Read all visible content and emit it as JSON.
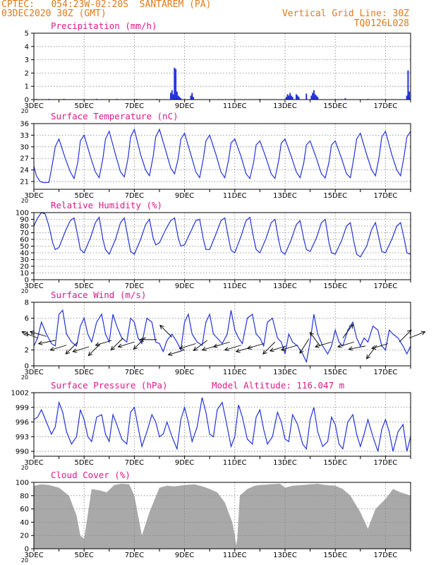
{
  "header": {
    "line1": "CPTEC:   054:23W-02:20S  SANTAREM (PA)",
    "line2": "03DEC2020 30Z (GMT)",
    "grid_note": "Vertical Grid Line: 30Z",
    "run_id": "TQ0126L028"
  },
  "colors": {
    "header": "#e07a1a",
    "title": "#e0188a",
    "series": "#2233dd",
    "bar": "#2233dd",
    "cloud": "#a9a9a9",
    "grid": "#808080"
  },
  "x_axis": {
    "day_start": 3,
    "day_end": 18,
    "tick_labels": [
      "3DEC",
      "5DEC",
      "7DEC",
      "9DEC",
      "11DEC",
      "13DEC",
      "15DEC",
      "17DEC"
    ],
    "tick_days": [
      3,
      5,
      7,
      9,
      11,
      13,
      15,
      17
    ],
    "clipped_label": "20"
  },
  "chart_data": [
    {
      "name": "precipitation",
      "type": "bar",
      "title": "Precipitation (mm/h)",
      "ylim": [
        0,
        5
      ],
      "yticks": [
        0,
        1,
        2,
        3,
        4,
        5
      ],
      "x_days": [
        3.1,
        3.6,
        4.2,
        5.5,
        6.3,
        7.1,
        7.9,
        8.45,
        8.5,
        8.55,
        8.6,
        8.65,
        8.7,
        8.75,
        8.8,
        8.85,
        9.25,
        9.3,
        9.35,
        12.0,
        13.05,
        13.1,
        13.15,
        13.2,
        13.25,
        13.3,
        13.45,
        13.5,
        13.55,
        13.85,
        14.05,
        14.1,
        14.15,
        14.2,
        14.25,
        14.3,
        15.4,
        16.3,
        17.85,
        17.9,
        17.95
      ],
      "values": [
        0.05,
        0.05,
        0.05,
        0.05,
        0.05,
        0.05,
        0.05,
        0.5,
        0.7,
        0.4,
        2.4,
        2.3,
        0.6,
        0.3,
        0.2,
        0.1,
        0.3,
        0.5,
        0.2,
        0.05,
        0.2,
        0.4,
        0.3,
        0.5,
        0.3,
        0.2,
        0.4,
        0.3,
        0.2,
        0.45,
        0.3,
        0.5,
        0.7,
        0.4,
        0.3,
        0.2,
        0.1,
        0.05,
        0.3,
        2.2,
        0.6
      ]
    },
    {
      "name": "surface_temperature",
      "type": "line",
      "title": "Surface Temperature (nC)",
      "ylim": [
        19,
        36
      ],
      "yticks": [
        21,
        24,
        27,
        30,
        33,
        36
      ],
      "x_days": [
        3.0,
        3.1,
        3.25,
        3.4,
        3.6,
        3.75,
        3.85,
        4.0,
        4.25,
        4.45,
        4.6,
        4.75,
        4.85,
        5.0,
        5.25,
        5.45,
        5.6,
        5.75,
        5.85,
        6.0,
        6.25,
        6.45,
        6.6,
        6.75,
        6.85,
        7.0,
        7.25,
        7.45,
        7.6,
        7.75,
        7.85,
        8.0,
        8.25,
        8.45,
        8.6,
        8.75,
        8.85,
        9.0,
        9.25,
        9.45,
        9.6,
        9.75,
        9.85,
        10.0,
        10.25,
        10.45,
        10.6,
        10.75,
        10.85,
        11.0,
        11.25,
        11.45,
        11.6,
        11.75,
        11.85,
        12.0,
        12.25,
        12.45,
        12.6,
        12.75,
        12.85,
        13.0,
        13.25,
        13.45,
        13.6,
        13.75,
        13.85,
        14.0,
        14.25,
        14.45,
        14.6,
        14.75,
        14.85,
        15.0,
        15.25,
        15.45,
        15.6,
        15.75,
        15.85,
        16.0,
        16.25,
        16.45,
        16.6,
        16.75,
        16.85,
        17.0,
        17.25,
        17.45,
        17.6,
        17.75,
        17.85,
        18.0
      ],
      "values": [
        25.0,
        22.5,
        21.0,
        20.7,
        20.8,
        26.0,
        30.0,
        32.0,
        27.0,
        23.5,
        21.8,
        26.0,
        31.5,
        33.0,
        27.5,
        23.5,
        22.0,
        27.0,
        32.0,
        34.0,
        28.0,
        23.5,
        22.2,
        27.0,
        32.5,
        34.5,
        28.0,
        24.0,
        22.5,
        27.5,
        32.5,
        34.5,
        29.0,
        24.5,
        23.0,
        27.0,
        32.0,
        33.5,
        28.0,
        23.5,
        22.0,
        27.0,
        31.5,
        33.0,
        28.0,
        23.5,
        22.0,
        26.5,
        31.0,
        32.0,
        27.5,
        23.0,
        21.8,
        26.0,
        30.5,
        31.5,
        27.0,
        23.0,
        21.8,
        26.5,
        31.0,
        32.0,
        27.5,
        23.5,
        22.0,
        26.0,
        30.5,
        31.5,
        27.0,
        23.0,
        21.9,
        26.0,
        30.5,
        31.5,
        27.0,
        23.0,
        22.0,
        27.5,
        32.0,
        33.5,
        28.0,
        24.0,
        22.5,
        27.5,
        32.5,
        34.0,
        28.0,
        24.0,
        22.5,
        28.0,
        32.5,
        34.0
      ]
    },
    {
      "name": "relative_humidity",
      "type": "line",
      "title": "Relative Humidity (%)",
      "ylim": [
        0,
        100
      ],
      "yticks": [
        0,
        10,
        20,
        30,
        40,
        50,
        60,
        70,
        80,
        90,
        100
      ],
      "x_days": [
        3.0,
        3.15,
        3.3,
        3.45,
        3.6,
        3.75,
        3.85,
        4.0,
        4.25,
        4.45,
        4.6,
        4.75,
        4.85,
        5.0,
        5.25,
        5.45,
        5.6,
        5.75,
        5.85,
        6.0,
        6.25,
        6.45,
        6.6,
        6.75,
        6.85,
        7.0,
        7.25,
        7.45,
        7.6,
        7.75,
        7.85,
        8.0,
        8.25,
        8.45,
        8.6,
        8.75,
        8.85,
        9.0,
        9.25,
        9.45,
        9.6,
        9.75,
        9.85,
        10.0,
        10.25,
        10.45,
        10.6,
        10.75,
        10.85,
        11.0,
        11.25,
        11.45,
        11.6,
        11.75,
        11.85,
        12.0,
        12.25,
        12.45,
        12.6,
        12.75,
        12.85,
        13.0,
        13.25,
        13.45,
        13.6,
        13.75,
        13.85,
        14.0,
        14.25,
        14.45,
        14.6,
        14.75,
        14.85,
        15.0,
        15.25,
        15.45,
        15.6,
        15.75,
        15.85,
        16.0,
        16.25,
        16.45,
        16.6,
        16.75,
        16.85,
        17.0,
        17.25,
        17.45,
        17.6,
        17.75,
        17.85,
        18.0
      ],
      "values": [
        80,
        92,
        100,
        98,
        80,
        55,
        45,
        48,
        72,
        88,
        92,
        65,
        45,
        40,
        62,
        85,
        93,
        60,
        45,
        38,
        60,
        85,
        92,
        62,
        42,
        38,
        60,
        82,
        90,
        62,
        52,
        55,
        75,
        88,
        92,
        62,
        50,
        52,
        72,
        88,
        90,
        60,
        45,
        45,
        68,
        88,
        92,
        62,
        44,
        40,
        65,
        88,
        93,
        62,
        45,
        40,
        62,
        85,
        90,
        58,
        42,
        38,
        60,
        82,
        88,
        60,
        45,
        42,
        62,
        85,
        90,
        55,
        40,
        38,
        58,
        80,
        85,
        55,
        38,
        34,
        50,
        75,
        85,
        60,
        42,
        40,
        60,
        80,
        85,
        60,
        40,
        38
      ]
    },
    {
      "name": "surface_wind",
      "type": "line",
      "title": "Surface Wind (m/s)",
      "ylim": [
        0,
        8
      ],
      "yticks": [
        0,
        2,
        4,
        6,
        8
      ],
      "x_days": [
        3.0,
        3.15,
        3.3,
        3.5,
        3.7,
        3.85,
        4.0,
        4.15,
        4.3,
        4.5,
        4.7,
        4.85,
        5.0,
        5.15,
        5.3,
        5.5,
        5.7,
        5.85,
        6.0,
        6.15,
        6.3,
        6.5,
        6.7,
        6.85,
        7.0,
        7.15,
        7.3,
        7.5,
        7.7,
        7.85,
        8.0,
        8.15,
        8.3,
        8.5,
        8.7,
        8.85,
        9.0,
        9.15,
        9.3,
        9.5,
        9.7,
        9.85,
        10.0,
        10.15,
        10.3,
        10.5,
        10.7,
        10.85,
        11.0,
        11.15,
        11.3,
        11.5,
        11.7,
        11.85,
        12.0,
        12.15,
        12.3,
        12.5,
        12.7,
        12.85,
        13.0,
        13.15,
        13.3,
        13.5,
        13.7,
        13.85,
        14.0,
        14.15,
        14.3,
        14.5,
        14.7,
        14.85,
        15.0,
        15.15,
        15.3,
        15.5,
        15.7,
        15.85,
        16.0,
        16.15,
        16.3,
        16.5,
        16.7,
        16.85,
        17.0,
        17.15,
        17.3,
        17.5,
        17.7,
        17.85,
        18.0
      ],
      "values": [
        2.5,
        3.5,
        5.5,
        4.0,
        2.8,
        2.5,
        6.5,
        7.0,
        4.0,
        3.0,
        2.5,
        5.0,
        6.0,
        4.0,
        3.0,
        5.5,
        6.5,
        4.0,
        3.0,
        6.5,
        5.0,
        3.5,
        3.0,
        6.0,
        5.5,
        3.5,
        2.8,
        6.0,
        5.5,
        3.0,
        2.8,
        1.8,
        3.2,
        4.0,
        3.0,
        2.0,
        5.5,
        6.5,
        4.0,
        3.0,
        2.6,
        5.5,
        6.5,
        4.0,
        3.5,
        2.8,
        4.0,
        7.0,
        4.5,
        3.5,
        2.8,
        6.0,
        6.5,
        4.0,
        3.5,
        2.5,
        5.5,
        6.0,
        3.5,
        3.0,
        1.5,
        4.0,
        3.0,
        2.5,
        1.5,
        0.5,
        3.0,
        6.5,
        4.0,
        2.5,
        1.5,
        2.5,
        4.5,
        3.0,
        2.5,
        4.5,
        5.5,
        3.5,
        2.5,
        3.5,
        3.0,
        5.0,
        4.5,
        2.5,
        2.0,
        4.5,
        4.0,
        3.5,
        2.5,
        1.5,
        2.5
      ],
      "barbs": {
        "x_days": [
          3.15,
          3.5,
          3.85,
          4.3,
          4.75,
          5.2,
          5.65,
          6.1,
          6.55,
          7.0,
          7.45,
          7.9,
          8.5,
          9.0,
          9.45,
          9.9,
          10.35,
          10.8,
          11.25,
          11.7,
          12.15,
          12.6,
          13.05,
          13.5,
          13.95,
          14.4,
          14.85,
          15.3,
          15.75,
          16.2,
          16.65,
          17.1,
          17.55,
          17.95
        ],
        "y_values": [
          3.5,
          3.7,
          3.2,
          2.6,
          3.0,
          2.4,
          2.8,
          3.2,
          3.5,
          3.0,
          3.6,
          3.3,
          3.6,
          2.0,
          2.8,
          3.2,
          2.6,
          3.0,
          2.6,
          2.4,
          2.8,
          3.0,
          2.5,
          2.6,
          3.4,
          2.5,
          3.0,
          3.5,
          3.0,
          2.5,
          2.6,
          2.8,
          3.0,
          3.5
        ],
        "u": [
          -1,
          -1,
          -1,
          -1,
          -0.7,
          -1,
          -0.7,
          -1,
          -0.7,
          -1,
          -0.7,
          -1,
          -0.5,
          -1,
          -1,
          -0.8,
          -1,
          -1,
          -1,
          -1,
          -1,
          -0.7,
          -1,
          -1,
          -0.5,
          -0.6,
          -1,
          0.6,
          -1,
          -1,
          -0.6,
          -1,
          0.7,
          1
        ],
        "v": [
          0.4,
          0.3,
          -0.2,
          -0.3,
          -0.7,
          -0.3,
          -0.7,
          -0.3,
          -0.7,
          -0.3,
          -0.7,
          0,
          0.5,
          -0.3,
          -0.3,
          -0.6,
          -0.3,
          -0.3,
          -0.3,
          -0.3,
          -0.3,
          -0.7,
          -0.3,
          -0.3,
          -0.8,
          0.8,
          -0.3,
          0.8,
          -0.3,
          -0.2,
          -0.8,
          -0.3,
          0.7,
          0.4
        ]
      }
    },
    {
      "name": "surface_pressure",
      "type": "line",
      "title": "Surface Pressure (hPa)",
      "annotation": "Model Altitude: 116.047 m",
      "ylim": [
        989,
        1002
      ],
      "yticks": [
        990,
        993,
        996,
        999,
        1002
      ],
      "x_days": [
        3.0,
        3.15,
        3.3,
        3.5,
        3.7,
        3.85,
        4.0,
        4.15,
        4.3,
        4.5,
        4.7,
        4.85,
        5.0,
        5.15,
        5.3,
        5.5,
        5.7,
        5.85,
        6.0,
        6.15,
        6.3,
        6.5,
        6.7,
        6.85,
        7.0,
        7.15,
        7.3,
        7.5,
        7.7,
        7.85,
        8.0,
        8.15,
        8.3,
        8.5,
        8.7,
        8.85,
        9.0,
        9.15,
        9.3,
        9.5,
        9.7,
        9.85,
        10.0,
        10.15,
        10.3,
        10.5,
        10.7,
        10.85,
        11.0,
        11.15,
        11.3,
        11.5,
        11.7,
        11.85,
        12.0,
        12.15,
        12.3,
        12.5,
        12.7,
        12.85,
        13.0,
        13.15,
        13.3,
        13.5,
        13.7,
        13.85,
        14.0,
        14.15,
        14.3,
        14.5,
        14.7,
        14.85,
        15.0,
        15.15,
        15.3,
        15.5,
        15.7,
        15.85,
        16.0,
        16.15,
        16.3,
        16.5,
        16.7,
        16.85,
        17.0,
        17.15,
        17.3,
        17.5,
        17.7,
        17.85,
        18.0
      ],
      "values": [
        996.5,
        997.0,
        998.5,
        996.0,
        993.5,
        995.0,
        1000.0,
        998.0,
        994.0,
        991.5,
        993.0,
        998.5,
        996.5,
        993.0,
        992.0,
        997.0,
        997.5,
        993.5,
        992.0,
        997.5,
        995.5,
        992.5,
        991.5,
        998.0,
        999.0,
        995.0,
        991.0,
        994.0,
        997.5,
        996.0,
        993.0,
        993.5,
        996.0,
        993.0,
        990.5,
        996.5,
        999.0,
        996.0,
        992.0,
        995.0,
        1001.0,
        998.0,
        993.5,
        993.0,
        998.5,
        1000.0,
        995.0,
        991.0,
        993.0,
        999.5,
        997.0,
        992.5,
        991.5,
        997.0,
        998.5,
        994.5,
        991.5,
        993.0,
        998.0,
        996.0,
        992.5,
        992.0,
        997.5,
        995.5,
        991.5,
        990.5,
        996.5,
        999.0,
        994.0,
        991.0,
        992.0,
        997.0,
        995.5,
        991.5,
        990.5,
        996.0,
        997.5,
        993.5,
        991.0,
        993.5,
        996.5,
        993.0,
        990.0,
        994.5,
        996.5,
        994.0,
        990.0,
        994.0,
        995.5,
        990.0,
        993.0
      ]
    },
    {
      "name": "cloud_cover",
      "type": "area",
      "title": "Cloud Cover (%)",
      "ylim": [
        0,
        100
      ],
      "yticks": [
        0,
        20,
        40,
        60,
        80,
        100
      ],
      "x_days": [
        3.0,
        3.3,
        3.6,
        4.0,
        4.4,
        4.7,
        4.85,
        5.0,
        5.3,
        5.6,
        5.9,
        6.2,
        6.5,
        6.8,
        7.0,
        7.3,
        7.6,
        8.0,
        8.3,
        8.6,
        9.0,
        9.4,
        9.8,
        10.0,
        10.3,
        10.6,
        10.9,
        11.0,
        11.05,
        11.1,
        11.2,
        11.5,
        11.8,
        12.0,
        12.4,
        12.8,
        13.0,
        13.3,
        13.7,
        14.0,
        14.3,
        14.6,
        15.0,
        15.3,
        15.6,
        16.0,
        16.3,
        16.6,
        17.0,
        17.3,
        17.6,
        18.0
      ],
      "values": [
        95,
        97,
        96,
        92,
        80,
        50,
        20,
        15,
        90,
        88,
        85,
        96,
        98,
        97,
        80,
        20,
        55,
        92,
        95,
        94,
        96,
        97,
        93,
        90,
        85,
        70,
        40,
        20,
        5,
        15,
        80,
        90,
        95,
        96,
        97,
        98,
        92,
        95,
        96,
        97,
        98,
        96,
        95,
        90,
        80,
        55,
        30,
        60,
        75,
        90,
        85,
        80
      ]
    }
  ]
}
